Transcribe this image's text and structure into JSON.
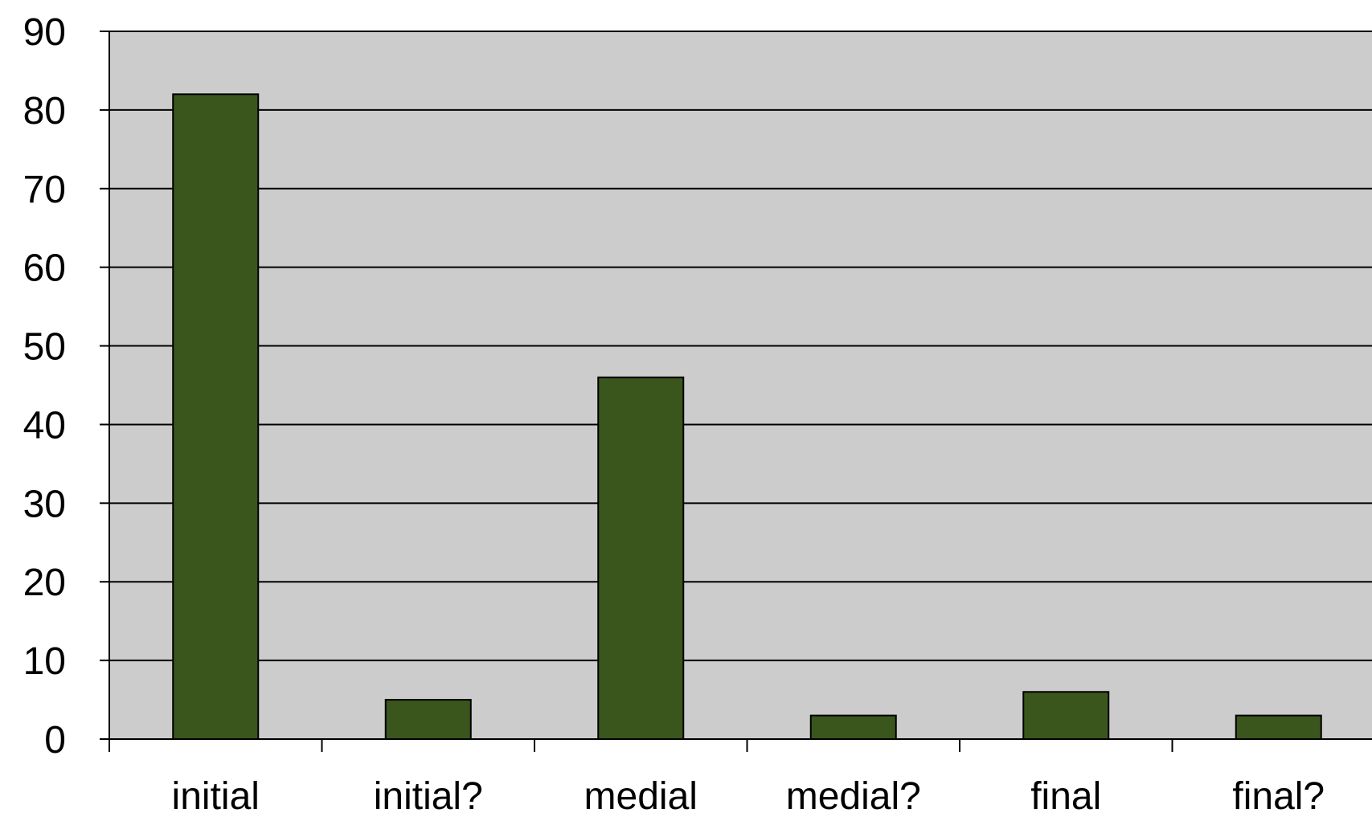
{
  "chart_data": {
    "type": "bar",
    "categories": [
      "initial",
      "initial?",
      "medial",
      "medial?",
      "final",
      "final?"
    ],
    "values": [
      82,
      5,
      46,
      3,
      6,
      3
    ],
    "ylim": [
      0,
      90
    ],
    "yticks": [
      0,
      10,
      20,
      30,
      40,
      50,
      60,
      70,
      80,
      90
    ],
    "grid": true,
    "legend": "none",
    "colors": {
      "bar": "#3a561c",
      "plot_background": "#cccccc",
      "gridline": "#000000"
    }
  }
}
